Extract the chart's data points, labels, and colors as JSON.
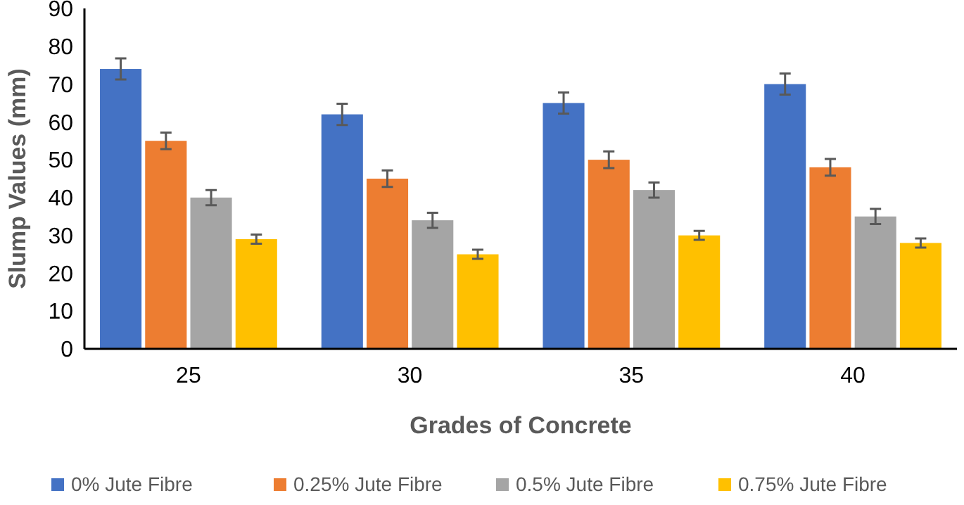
{
  "chart_data": {
    "type": "bar",
    "xlabel": "Grades of Concrete",
    "ylabel": "Slump Values (mm)",
    "categories": [
      "25",
      "30",
      "35",
      "40"
    ],
    "series": [
      {
        "name": "0% Jute Fibre",
        "color": "#4472c4",
        "values": [
          74,
          62,
          65,
          70
        ],
        "errors": [
          2.8,
          2.8,
          2.8,
          2.8
        ]
      },
      {
        "name": "0.25% Jute Fibre",
        "color": "#ed7d31",
        "values": [
          55,
          45,
          50,
          48
        ],
        "errors": [
          2.2,
          2.2,
          2.2,
          2.2
        ]
      },
      {
        "name": "0.5% Jute Fibre",
        "color": "#a5a5a5",
        "values": [
          40,
          34,
          42,
          35
        ],
        "errors": [
          2,
          2,
          2,
          2
        ]
      },
      {
        "name": "0.75% Jute Fibre",
        "color": "#ffc000",
        "values": [
          29,
          25,
          30,
          28
        ],
        "errors": [
          1.2,
          1.2,
          1.2,
          1.2
        ]
      }
    ],
    "ylim": [
      0,
      90
    ],
    "yticks": [
      0,
      10,
      20,
      30,
      40,
      50,
      60,
      70,
      80,
      90
    ],
    "grid": false,
    "legend": "bottom"
  }
}
